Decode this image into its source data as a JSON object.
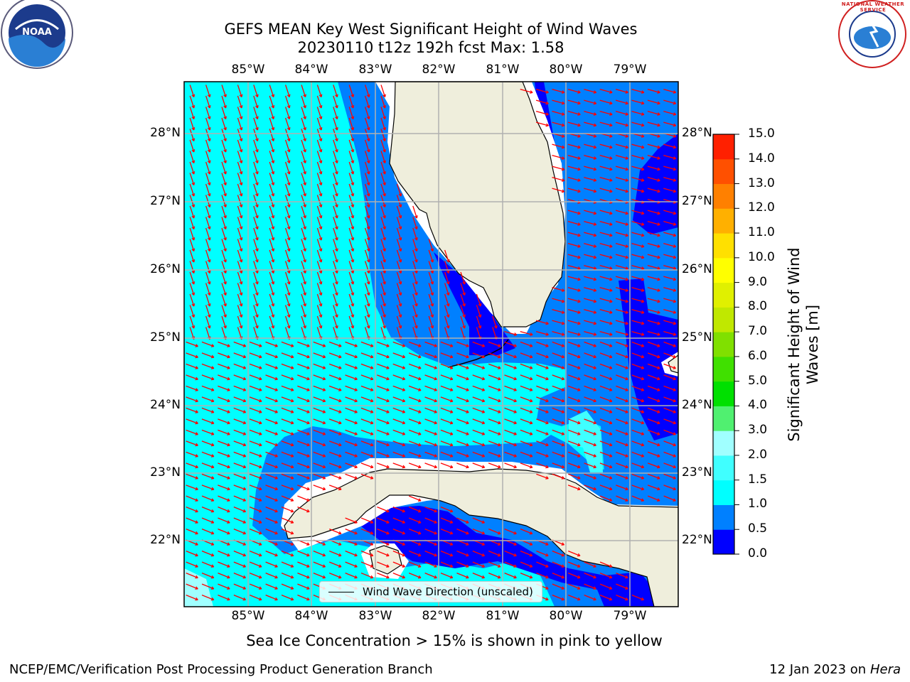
{
  "title_line1": "GEFS MEAN Key West Significant Height of Wind Waves",
  "title_line2": "20230110 t12z 192h fcst   Max: 1.58",
  "lon_labels": [
    "85°W",
    "84°W",
    "83°W",
    "82°W",
    "81°W",
    "80°W",
    "79°W"
  ],
  "lat_labels": [
    "28°N",
    "27°N",
    "26°N",
    "25°N",
    "24°N",
    "23°N",
    "22°N"
  ],
  "legend": {
    "label": "Wind Wave Direction (unscaled)"
  },
  "colorbar": {
    "title": "Significant Height of Wind Waves [m]",
    "ticks": [
      "15.0",
      "14.0",
      "13.0",
      "12.0",
      "11.0",
      "10.0",
      "9.0",
      "8.0",
      "7.0",
      "6.0",
      "5.0",
      "4.0",
      "3.0",
      "2.0",
      "1.5",
      "1.0",
      "0.5",
      "0.0"
    ],
    "colors": [
      "#0000ff",
      "#0080ff",
      "#00ffff",
      "#40ffff",
      "#a0ffff",
      "#50f070",
      "#00e000",
      "#40e000",
      "#80e000",
      "#c0e800",
      "#e0f000",
      "#ffff00",
      "#ffe000",
      "#ffb000",
      "#ff8000",
      "#ff5000",
      "#ff2000"
    ]
  },
  "ice_note": "Sea Ice Concentration > 15% is shown in pink to yellow",
  "footer_left": "NCEP/EMC/Verification Post Processing Product Generation Branch",
  "footer_right_date": "12 Jan 2023 on ",
  "footer_right_machine": "Hera",
  "logos": {
    "noaa": "NOAA",
    "nws": "NATIONAL WEATHER SERVICE"
  },
  "map_colors": {
    "land": "#efeedc",
    "cyan": "#00ffff",
    "medblue": "#0080ff",
    "darkblue": "#0000ff",
    "arrow": "#ff0000",
    "grid": "#b0b0b0"
  }
}
